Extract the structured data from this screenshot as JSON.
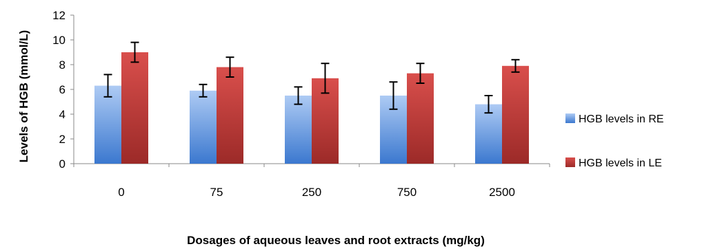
{
  "chart_data": {
    "type": "bar",
    "xlabel": "Dosages of aqueous leaves and root extracts (mg/kg)",
    "ylabel": "Levels of HGB (mmol/L)",
    "categories": [
      "0",
      "75",
      "250",
      "750",
      "2500"
    ],
    "ylim": [
      0,
      12
    ],
    "yticks": [
      "0",
      "2",
      "4",
      "6",
      "8",
      "10",
      "12"
    ],
    "grid": false,
    "legend_position": "right",
    "series": [
      {
        "name": "HGB levels in RE",
        "color": "#4f81bd",
        "values": [
          6.3,
          5.9,
          5.5,
          5.5,
          4.8
        ],
        "error": [
          0.9,
          0.5,
          0.7,
          1.1,
          0.7
        ]
      },
      {
        "name": "HGB levels in LE",
        "color": "#c0504d",
        "values": [
          9.0,
          7.8,
          6.9,
          7.3,
          7.9
        ],
        "error": [
          0.8,
          0.8,
          1.2,
          0.8,
          0.5
        ]
      }
    ]
  }
}
